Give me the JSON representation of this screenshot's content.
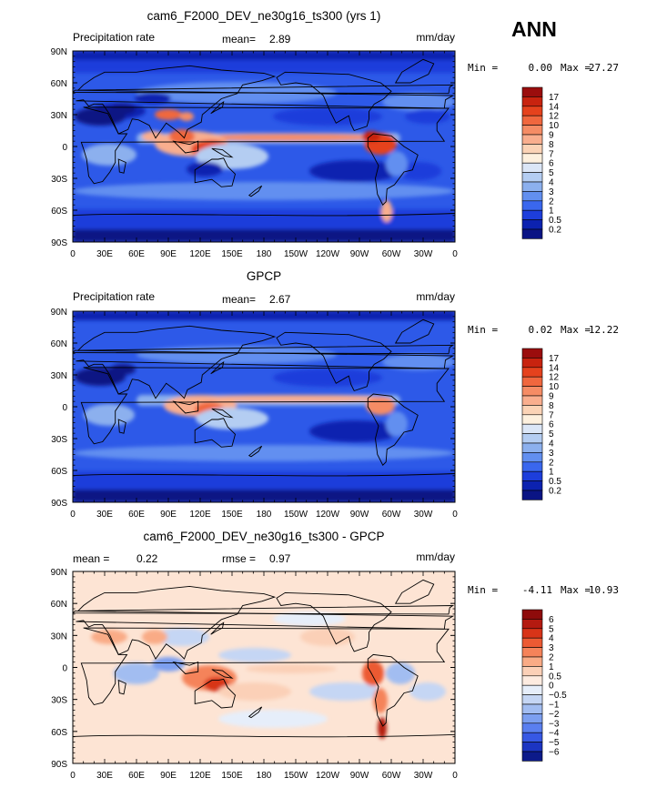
{
  "season": "ANN",
  "panels": [
    {
      "title": "cam6_F2000_DEV_ne30g16_ts300 (yrs 1)",
      "variable": "Precipitation rate",
      "mean_label": "mean=",
      "mean_value": "2.89",
      "rmse_label": "",
      "rmse_value": "",
      "units": "mm/day",
      "min_label": "Min =",
      "min_value": "0.00",
      "max_label": "Max =",
      "max_value": "27.27",
      "colorbar_labels": [
        "17",
        "14",
        "12",
        "10",
        "9",
        "8",
        "7",
        "6",
        "5",
        "4",
        "3",
        "2",
        "1",
        "0.5",
        "0.2"
      ],
      "colorbar_colors": [
        "#9b0d0d",
        "#c8230f",
        "#e5421d",
        "#f0673e",
        "#f58c65",
        "#f9ae8e",
        "#fbd3b6",
        "#fdf0de",
        "#dbe6f7",
        "#b4cdf2",
        "#8cb0ee",
        "#628ff0",
        "#3a67ee",
        "#1d3edb",
        "#0c22b0",
        "#0a1484"
      ]
    },
    {
      "title": "GPCP",
      "variable": "Precipitation rate",
      "mean_label": "mean=",
      "mean_value": "2.67",
      "rmse_label": "",
      "rmse_value": "",
      "units": "mm/day",
      "min_label": "Min =",
      "min_value": "0.02",
      "max_label": "Max =",
      "max_value": "12.22",
      "colorbar_labels": [
        "17",
        "14",
        "12",
        "10",
        "9",
        "8",
        "7",
        "6",
        "5",
        "4",
        "3",
        "2",
        "1",
        "0.5",
        "0.2"
      ],
      "colorbar_colors": [
        "#9b0d0d",
        "#c8230f",
        "#e5421d",
        "#f0673e",
        "#f58c65",
        "#f9ae8e",
        "#fbd3b6",
        "#fdf0de",
        "#dbe6f7",
        "#b4cdf2",
        "#8cb0ee",
        "#628ff0",
        "#3a67ee",
        "#1d3edb",
        "#0c22b0",
        "#0a1484"
      ]
    },
    {
      "title": "cam6_F2000_DEV_ne30g16_ts300 - GPCP",
      "variable": "",
      "mean_label": "mean =",
      "mean_value": "0.22",
      "rmse_label": "rmse =",
      "rmse_value": "0.97",
      "units": "mm/day",
      "min_label": "Min =",
      "min_value": "-4.11",
      "max_label": "Max =",
      "max_value": "10.93",
      "colorbar_labels": [
        "6",
        "5",
        "4",
        "3",
        "2",
        "1",
        "0.5",
        "0",
        "−0.5",
        "−1",
        "−2",
        "−3",
        "−4",
        "−5",
        "−6"
      ],
      "colorbar_colors": [
        "#8e0b0b",
        "#b41a10",
        "#d83418",
        "#ec5a33",
        "#f5835a",
        "#f9ab86",
        "#fbd0b7",
        "#fdebe0",
        "#e6eefa",
        "#c5d6f4",
        "#a2bdf1",
        "#7c9ff0",
        "#5a7ff0",
        "#3758e4",
        "#1c35c2",
        "#0c1a8a"
      ]
    }
  ],
  "lat_labels": [
    "90N",
    "60N",
    "30N",
    "0",
    "30S",
    "60S",
    "90S"
  ],
  "lon_labels": [
    "0",
    "30E",
    "60E",
    "90E",
    "120E",
    "150E",
    "180",
    "150W",
    "120W",
    "90W",
    "60W",
    "30W",
    "0"
  ],
  "colors": {
    "ocean_base": "#2a55e8",
    "diff_base": "#fde4d4"
  }
}
